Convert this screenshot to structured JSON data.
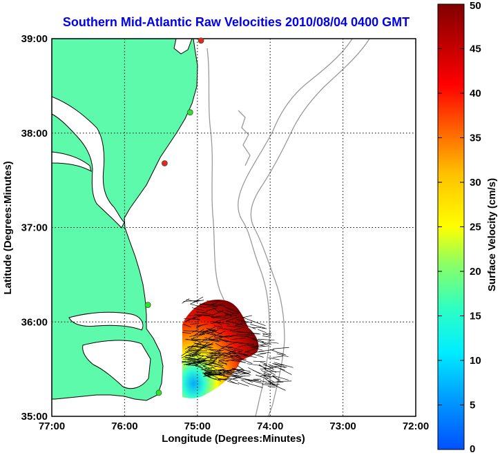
{
  "title": "Southern Mid-Atlantic Raw Velocities 2010/08/04 0400 GMT",
  "colors": {
    "land": "#5efaac",
    "coast": "#000000",
    "bathymetry": "#999999",
    "grid": "#000000",
    "title": "#0000ee",
    "vector": "#000000",
    "station_green": "#33dd33",
    "station_red": "#ee2222"
  },
  "chart_data": {
    "type": "map",
    "xlabel": "Longitude (Degrees:Minutes)",
    "ylabel": "Latitude (Degrees:Minutes)",
    "x_ticks": [
      "77:00",
      "76:00",
      "75:00",
      "74:00",
      "73:00",
      "72:00"
    ],
    "y_ticks": [
      "39:00",
      "38:00",
      "37:00",
      "36:00",
      "35:00"
    ],
    "xlim": [
      -77,
      -72
    ],
    "ylim": [
      35,
      39
    ],
    "grid": true,
    "colorbar": {
      "label": "Surface Velocity (cm/s)",
      "ticks": [
        "50",
        "45",
        "40",
        "35",
        "30",
        "25",
        "20",
        "15",
        "10",
        "5",
        "0"
      ],
      "range": [
        0,
        50
      ],
      "colormap": "jet"
    },
    "stations": [
      {
        "lon": -74.95,
        "lat": 38.98,
        "status": "red"
      },
      {
        "lon": -75.1,
        "lat": 38.22,
        "status": "green"
      },
      {
        "lon": -75.45,
        "lat": 37.68,
        "status": "red"
      },
      {
        "lon": -75.68,
        "lat": 36.18,
        "status": "green"
      },
      {
        "lon": -75.53,
        "lat": 35.25,
        "status": "green"
      }
    ]
  }
}
